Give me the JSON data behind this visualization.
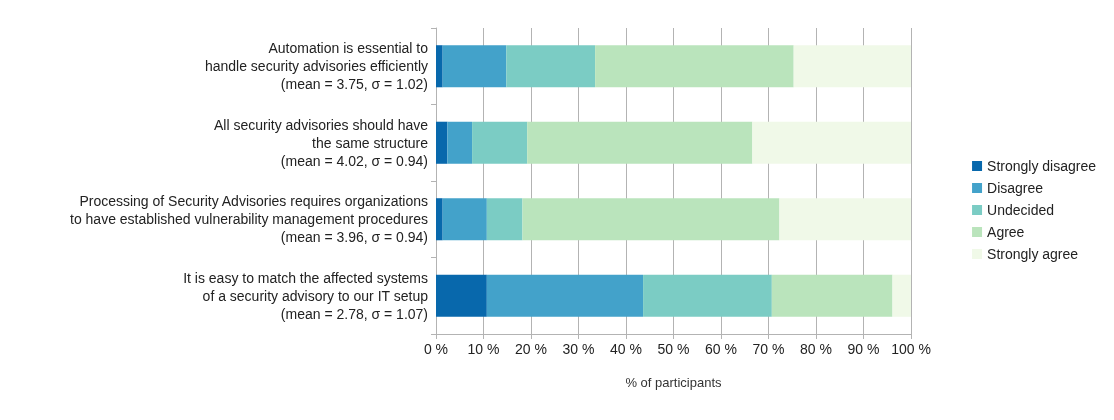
{
  "chart_data": {
    "type": "bar",
    "orientation": "horizontal",
    "stacked": true,
    "xlabel": "% of participants",
    "categories": [
      "Automation is essential to\nhandle security advisories efficiently\n(mean = 3.75, σ = 1.02)",
      "All security advisories should have\nthe same structure\n(mean = 4.02, σ = 0.94)",
      "Processing of Security Advisories requires organizations\nto have established vulnerability management procedures\n(mean = 3.96, σ = 0.94)",
      "It is easy to match the affected systems\nof a security advisory to our IT setup\n(mean = 2.78, σ = 1.07)"
    ],
    "series": [
      {
        "name": "Strongly disagree",
        "color": "#0868ac",
        "values": [
          1.4,
          2.4,
          1.4,
          10.7
        ]
      },
      {
        "name": "Disagree",
        "color": "#43a2ca",
        "values": [
          13.4,
          5.2,
          9.3,
          32.9
        ]
      },
      {
        "name": "Undecided",
        "color": "#7bccc4",
        "values": [
          18.7,
          11.6,
          7.5,
          27.1
        ]
      },
      {
        "name": "Agree",
        "color": "#bae4bc",
        "values": [
          41.8,
          47.4,
          54.1,
          25.4
        ]
      },
      {
        "name": "Strongly agree",
        "color": "#f0f9e8",
        "values": [
          24.7,
          33.4,
          27.7,
          3.9
        ]
      }
    ],
    "xlim": [
      0,
      100
    ],
    "xticks": [
      {
        "value": 0,
        "label": "0 %"
      },
      {
        "value": 10,
        "label": "10 %"
      },
      {
        "value": 20,
        "label": "20 %"
      },
      {
        "value": 30,
        "label": "30 %"
      },
      {
        "value": 40,
        "label": "40 %"
      },
      {
        "value": 50,
        "label": "50 %"
      },
      {
        "value": 60,
        "label": "60 %"
      },
      {
        "value": 70,
        "label": "70 %"
      },
      {
        "value": 80,
        "label": "80 %"
      },
      {
        "value": 90,
        "label": "90 %"
      },
      {
        "value": 100,
        "label": "100 %"
      }
    ],
    "grid": "x",
    "legend": "right"
  }
}
